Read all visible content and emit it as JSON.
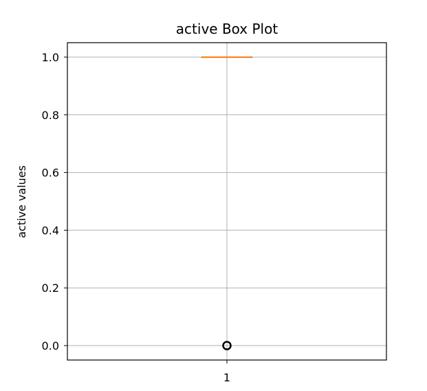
{
  "chart_data": {
    "type": "box",
    "title": "active Box Plot",
    "xlabel": "",
    "ylabel": "active values",
    "categories": [
      "1"
    ],
    "ylim": [
      -0.05,
      1.05
    ],
    "yticks": [
      0.0,
      0.2,
      0.4,
      0.6,
      0.8,
      1.0
    ],
    "ytick_labels": [
      "0.0",
      "0.2",
      "0.4",
      "0.6",
      "0.8",
      "1.0"
    ],
    "grid": true,
    "boxes": [
      {
        "category": "1",
        "whisker_low": 1.0,
        "q1": 1.0,
        "median": 1.0,
        "q3": 1.0,
        "whisker_high": 1.0,
        "outliers": [
          0.0
        ]
      }
    ],
    "colors": {
      "median": "#ff7f0e",
      "box": "#000000",
      "grid": "#b0b0b0",
      "outlier": "#000000"
    }
  }
}
